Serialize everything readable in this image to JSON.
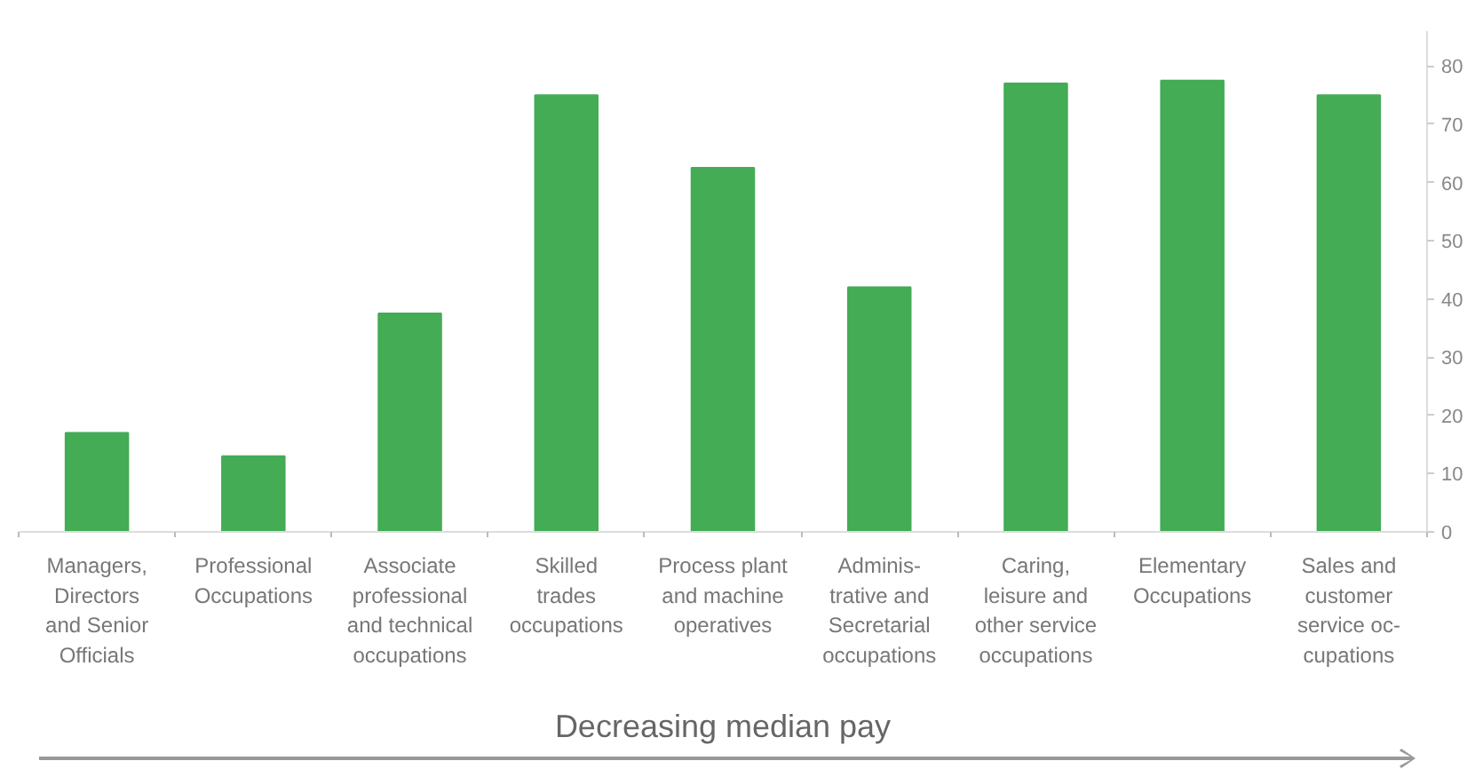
{
  "chart_data": {
    "type": "bar",
    "xlabel": "Decreasing median pay",
    "categories": [
      "Managers,\nDirectors\nand Senior\nOfficials",
      "Professional\nOccupations",
      "Associate\nprofessional\nand technical\noccupations",
      "Skilled\ntrades\noccupations",
      "Process plant\nand machine\noperatives",
      "Adminis-\ntrative and\nSecretarial\noccupations",
      "Caring,\nleisure and\nother service\noccupations",
      "Elementary\nOccupations",
      "Sales and\ncustomer\nservice oc-\ncupations"
    ],
    "values": [
      17,
      13,
      37.5,
      75,
      62.5,
      42,
      77,
      77.5,
      75
    ],
    "color": "#43ac55",
    "ylim": [
      0,
      86
    ],
    "yticks": [
      0,
      10,
      20,
      30,
      40,
      50,
      60,
      70,
      80
    ],
    "grid": false
  }
}
